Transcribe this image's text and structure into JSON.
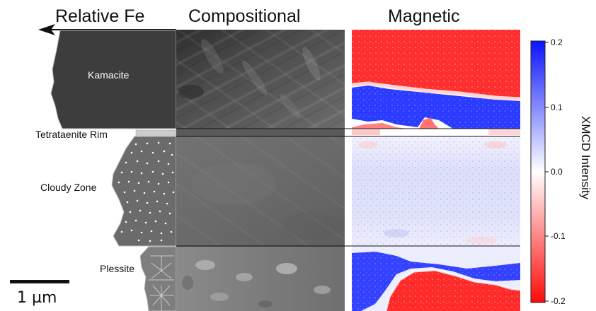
{
  "headers": {
    "relative_fe": "Relative Fe",
    "compositional": "Compositional",
    "magnetic": "Magnetic"
  },
  "regions": {
    "kamacite": "Kamacite",
    "tetrataenite_rim": "Tetrataenite Rim",
    "cloudy_zone": "Cloudy Zone",
    "plessite": "Plessite"
  },
  "colorbar": {
    "title": "XMCD Intensity",
    "ticks": [
      "0.2",
      "0.1",
      "0.0",
      "-0.1",
      "-0.2"
    ],
    "colors": {
      "positive": "#1f3bff",
      "zero": "#ffffff",
      "negative": "#ff1a1a"
    }
  },
  "scalebar": {
    "label": "1 µm"
  },
  "icons": {
    "relative_fe_arrow": "arrow-left-icon"
  },
  "colors": {
    "kamacite_fill": "#3d3d3d",
    "rim_fill": "#c8c8c8",
    "cloudy_fill": "#6b6b6b",
    "plessite_fill": "#808080"
  }
}
